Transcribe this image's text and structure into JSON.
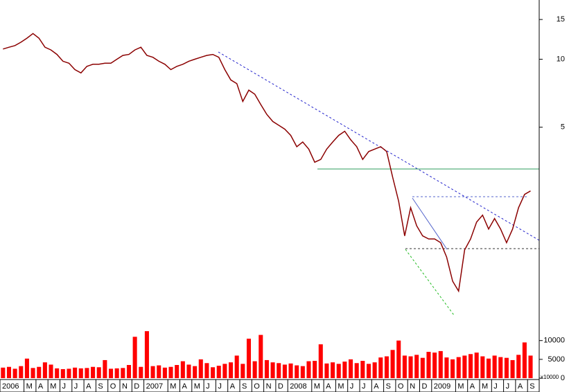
{
  "chart_data": [
    {
      "type": "line",
      "log_scale": true,
      "color": "#8b0000",
      "categories": [
        "2006",
        null,
        null,
        null,
        "M",
        null,
        "A",
        null,
        "M",
        null,
        "J",
        null,
        "J",
        null,
        "A",
        null,
        "S",
        null,
        "O",
        null,
        "N",
        null,
        "D",
        null,
        "2007",
        null,
        null,
        null,
        "M",
        null,
        "A",
        null,
        "M",
        null,
        "J",
        null,
        "J",
        null,
        "A",
        null,
        "S",
        null,
        "O",
        null,
        "N",
        null,
        "D",
        null,
        "2008",
        null,
        null,
        null,
        "M",
        null,
        "A",
        null,
        "M",
        null,
        "J",
        null,
        "J",
        null,
        "A",
        null,
        "S",
        null,
        "O",
        null,
        "N",
        null,
        "D",
        null,
        "2009",
        null,
        null,
        null,
        "M",
        null,
        "A",
        null,
        "M",
        null,
        "J",
        null,
        "J",
        null,
        "A",
        null,
        "S"
      ],
      "values": [
        11.1,
        11.3,
        11.5,
        11.9,
        12.4,
        13.0,
        12.4,
        11.3,
        11.0,
        10.5,
        9.8,
        9.6,
        9.0,
        8.7,
        9.3,
        9.5,
        9.5,
        9.6,
        9.6,
        10.0,
        10.4,
        10.5,
        11.0,
        11.3,
        10.4,
        10.2,
        9.8,
        9.5,
        9.0,
        9.3,
        9.5,
        9.8,
        10.0,
        10.2,
        10.4,
        10.5,
        10.2,
        9.0,
        8.1,
        7.8,
        6.5,
        7.3,
        7.0,
        6.3,
        5.7,
        5.3,
        5.1,
        4.9,
        4.6,
        4.1,
        4.3,
        4.0,
        3.5,
        3.6,
        4.0,
        4.3,
        4.6,
        4.8,
        4.4,
        4.1,
        3.6,
        3.9,
        4.0,
        4.1,
        3.9,
        3.0,
        2.35,
        1.65,
        2.2,
        1.83,
        1.65,
        1.6,
        1.6,
        1.54,
        1.33,
        1.04,
        0.94,
        1.43,
        1.6,
        1.9,
        2.04,
        1.77,
        1.97,
        1.77,
        1.54,
        1.77,
        2.2,
        2.52,
        2.61
      ],
      "ylim": [
        0.7,
        18.3
      ],
      "yticks": [
        5,
        10,
        15
      ]
    },
    {
      "type": "bar",
      "color": "#ff0000",
      "y_unit": "x10000",
      "values": [
        2800,
        3000,
        2500,
        3200,
        5200,
        2700,
        3000,
        4200,
        3600,
        2600,
        2400,
        2500,
        2800,
        2600,
        2700,
        3000,
        2900,
        4800,
        2500,
        2600,
        2700,
        3500,
        11000,
        3000,
        12500,
        3200,
        3400,
        2800,
        3000,
        3500,
        4500,
        3600,
        3200,
        5000,
        4000,
        2900,
        3300,
        3800,
        4200,
        6000,
        3800,
        10500,
        4500,
        11500,
        4800,
        4200,
        4000,
        3600,
        3900,
        3400,
        3200,
        4500,
        4600,
        9000,
        3900,
        4200,
        3800,
        4400,
        5000,
        4000,
        4600,
        3800,
        4200,
        5500,
        5800,
        7500,
        10000,
        6000,
        5800,
        6200,
        5400,
        7000,
        6800,
        7200,
        5500,
        5000,
        5600,
        6000,
        6400,
        6800,
        5800,
        5200,
        6000,
        5600,
        5400,
        4800,
        6200,
        9500,
        6000
      ],
      "ylim": [
        0,
        14000
      ],
      "yticks": [
        0,
        5000,
        10000
      ]
    }
  ]
}
